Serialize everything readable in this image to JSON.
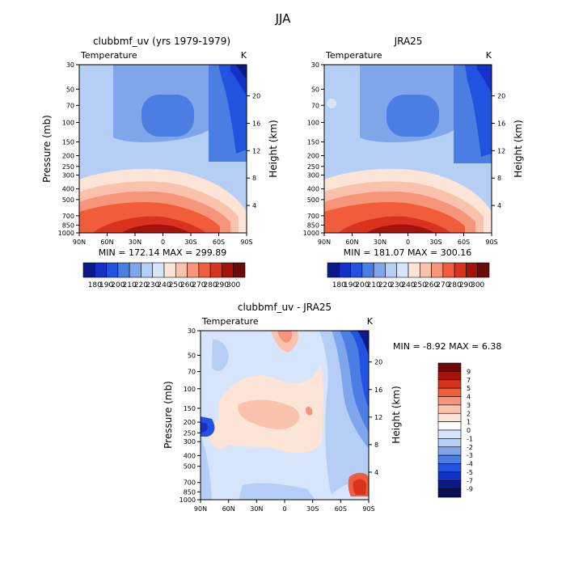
{
  "page_title": "JJA",
  "chart_data": [
    {
      "type": "heatmap",
      "title": "clubbmf_uv (yrs 1979-1979)",
      "subtitle_left": "Temperature",
      "subtitle_right": "K",
      "xlabel": "",
      "ylabel": "Pressure (mb)",
      "ylabel_right": "Height (km)",
      "x_ticks": [
        "90N",
        "60N",
        "30N",
        "0",
        "30S",
        "60S",
        "90S"
      ],
      "y_ticks": [
        "30",
        "50",
        "70",
        "100",
        "150",
        "200",
        "250",
        "300",
        "400",
        "500",
        "700",
        "850",
        "1000"
      ],
      "y_right_ticks": [
        "20",
        "16",
        "12",
        "8",
        "4"
      ],
      "stats": "MIN = 172.14   MAX = 299.89",
      "colorbar_labels": [
        "180",
        "190",
        "200",
        "210",
        "220",
        "230",
        "240",
        "250",
        "260",
        "270",
        "280",
        "290",
        "300"
      ]
    },
    {
      "type": "heatmap",
      "title": "JRA25",
      "subtitle_left": "Temperature",
      "subtitle_right": "K",
      "xlabel": "",
      "ylabel": "",
      "ylabel_right": "Height (km)",
      "x_ticks": [
        "90N",
        "60N",
        "30N",
        "0",
        "30S",
        "60S",
        "90S"
      ],
      "y_ticks": [
        "30",
        "50",
        "70",
        "100",
        "150",
        "200",
        "250",
        "300",
        "400",
        "500",
        "700",
        "850",
        "1000"
      ],
      "y_right_ticks": [
        "20",
        "16",
        "12",
        "8",
        "4"
      ],
      "stats": "MIN = 181.07   MAX = 300.16",
      "colorbar_labels": [
        "180",
        "190",
        "200",
        "210",
        "220",
        "230",
        "240",
        "250",
        "260",
        "270",
        "280",
        "290",
        "300"
      ]
    },
    {
      "type": "heatmap",
      "title": "clubbmf_uv - JRA25",
      "subtitle_left": "Temperature",
      "subtitle_right": "K",
      "xlabel": "",
      "ylabel": "Pressure (mb)",
      "ylabel_right": "Height (km)",
      "x_ticks": [
        "90N",
        "60N",
        "30N",
        "0",
        "30S",
        "60S",
        "90S"
      ],
      "y_ticks": [
        "30",
        "50",
        "70",
        "100",
        "150",
        "200",
        "250",
        "300",
        "400",
        "500",
        "700",
        "850",
        "1000"
      ],
      "y_right_ticks": [
        "20",
        "16",
        "12",
        "8",
        "4"
      ],
      "stats": "MIN =   -8.92   MAX =    6.38",
      "colorbar_labels": [
        "9",
        "7",
        "5",
        "4",
        "3",
        "2",
        "1",
        "0",
        "-1",
        "-2",
        "-3",
        "-4",
        "-5",
        "-7",
        "-9"
      ]
    }
  ]
}
